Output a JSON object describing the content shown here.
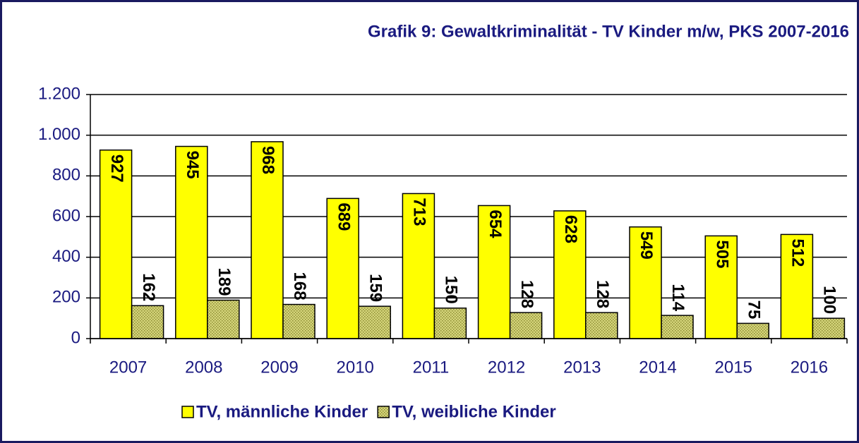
{
  "chart_data": {
    "type": "bar",
    "title": "Grafik 9: Gewaltkriminalität - TV Kinder m/w, PKS 2007-2016",
    "categories": [
      "2007",
      "2008",
      "2009",
      "2010",
      "2011",
      "2012",
      "2013",
      "2014",
      "2015",
      "2016"
    ],
    "series": [
      {
        "name": "TV, männliche Kinder",
        "color": "#ffff00",
        "values": [
          927,
          945,
          968,
          689,
          713,
          654,
          628,
          549,
          505,
          512
        ]
      },
      {
        "name": "TV, weibliche Kinder",
        "color": "#d4d47a",
        "values": [
          162,
          189,
          168,
          159,
          150,
          128,
          128,
          114,
          75,
          100
        ]
      }
    ],
    "ylim": [
      0,
      1200
    ],
    "yticks": [
      0,
      200,
      400,
      600,
      800,
      {
        "value": 1000,
        "label": "1.000"
      },
      {
        "value": 1200,
        "label": "1.200"
      }
    ],
    "grid": true,
    "legend": "bottom"
  }
}
